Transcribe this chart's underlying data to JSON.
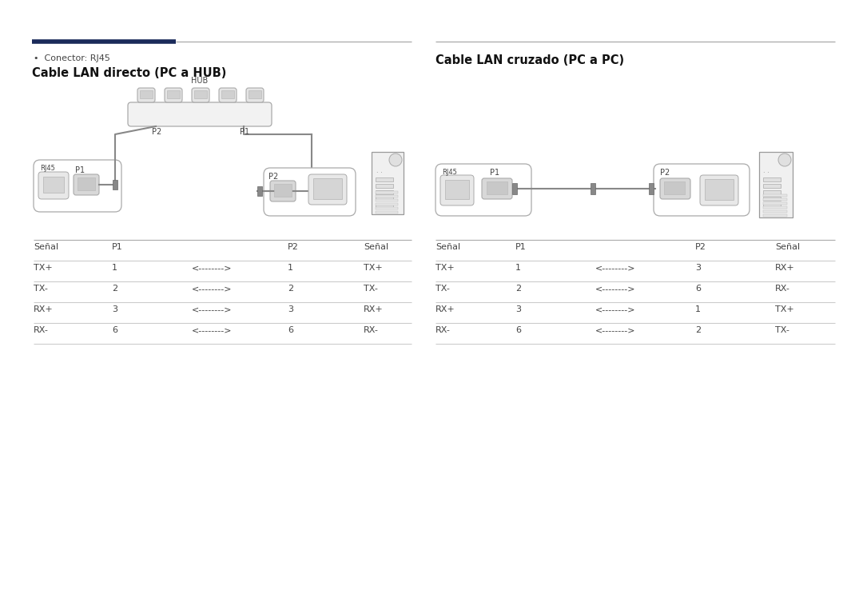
{
  "bg_color": "#ffffff",
  "header_line_dark_color": "#1a2a5a",
  "header_line_thin_color": "#b0b0b0",
  "bullet_text": "Conector: RJ45",
  "left_title": "Cable LAN directo (PC a HUB)",
  "right_title": "Cable LAN cruzado (PC a PC)",
  "left_table_header": [
    "Señal",
    "P1",
    "",
    "P2",
    "Señal"
  ],
  "left_table_rows": [
    [
      "TX+",
      "1",
      "<-------->",
      "1",
      "TX+"
    ],
    [
      "TX-",
      "2",
      "<-------->",
      "2",
      "TX-"
    ],
    [
      "RX+",
      "3",
      "<-------->",
      "3",
      "RX+"
    ],
    [
      "RX-",
      "6",
      "<-------->",
      "6",
      "RX-"
    ]
  ],
  "right_table_header": [
    "Señal",
    "P1",
    "",
    "P2",
    "Señal"
  ],
  "right_table_rows": [
    [
      "TX+",
      "1",
      "<-------->",
      "3",
      "RX+"
    ],
    [
      "TX-",
      "2",
      "<-------->",
      "6",
      "RX-"
    ],
    [
      "RX+",
      "3",
      "<-------->",
      "1",
      "TX+"
    ],
    [
      "RX-",
      "6",
      "<-------->",
      "2",
      "TX-"
    ]
  ],
  "text_color": "#444444",
  "table_line_color": "#cccccc",
  "font_size_title": 10.5,
  "font_size_body": 8,
  "font_size_small": 7,
  "font_size_bullet": 8
}
